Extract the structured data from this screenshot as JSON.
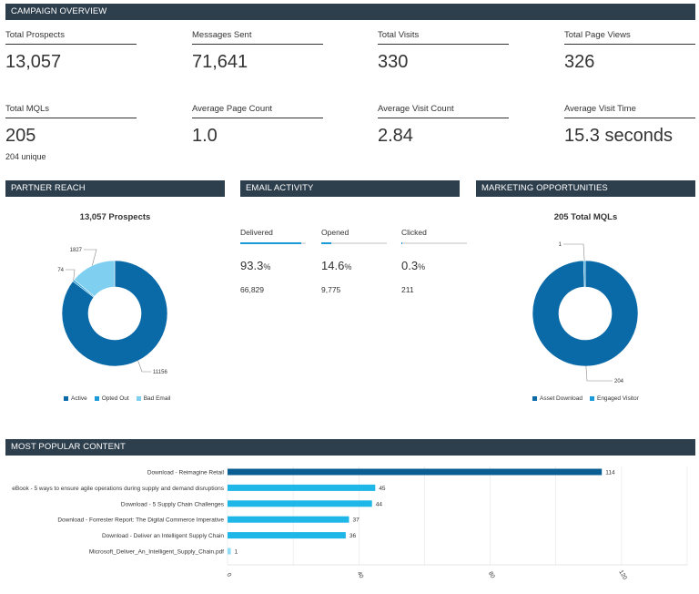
{
  "sections": {
    "overview": "CAMPAIGN OVERVIEW",
    "partner": "PARTNER REACH",
    "email": "EMAIL ACTIVITY",
    "marketing": "MARKETING OPPORTUNITIES",
    "content": "MOST POPULAR CONTENT"
  },
  "kpis": [
    {
      "label": "Total Prospects",
      "value": "13,057"
    },
    {
      "label": "Messages Sent",
      "value": "71,641"
    },
    {
      "label": "Total Visits",
      "value": "330"
    },
    {
      "label": "Total Page Views",
      "value": "326"
    },
    {
      "label": "Total MQLs",
      "value": "205",
      "sub": "204 unique"
    },
    {
      "label": "Average Page Count",
      "value": "1.0"
    },
    {
      "label": "Average Visit Count",
      "value": "2.84"
    },
    {
      "label": "Average Visit Time",
      "value": "15.3 seconds"
    }
  ],
  "email_activity": [
    {
      "label": "Delivered",
      "pct": "93.3",
      "unit": "%",
      "count": "66,829",
      "fraction": 0.933
    },
    {
      "label": "Opened",
      "pct": "14.6",
      "unit": "%",
      "count": "9,775",
      "fraction": 0.146
    },
    {
      "label": "Clicked",
      "pct": "0.3",
      "unit": "%",
      "count": "211",
      "fraction": 0.003
    }
  ],
  "chart_data": [
    {
      "type": "pie",
      "title": "13,057 Prospects",
      "slices": [
        {
          "name": "Active",
          "value": 11156,
          "label": "11156",
          "color": "#0a6aa8"
        },
        {
          "name": "Opted Out",
          "value": 74,
          "label": "74",
          "color": "#1a9ad6"
        },
        {
          "name": "Bad Email",
          "value": 1827,
          "label": "1827",
          "color": "#7fcff0"
        }
      ],
      "legend": "bottom"
    },
    {
      "type": "pie",
      "title": "205 Total MQLs",
      "slices": [
        {
          "name": "Asset Download",
          "value": 204,
          "label": "204",
          "color": "#0a6aa8"
        },
        {
          "name": "Engaged Visitor",
          "value": 1,
          "label": "1",
          "color": "#1a9ad6"
        }
      ],
      "legend": "bottom"
    },
    {
      "type": "bar",
      "orientation": "horizontal",
      "categories": [
        "Download - Reimagine Retail",
        "eBook - 5 ways to ensure agile operations during supply and demand disruptions",
        "Download - 5 Supply Chain Challenges",
        "Download - Forrester Report: The Digital Commerce Imperative",
        "Download - Deliver an Intelligent Supply Chain",
        "Microsoft_Deliver_An_Intelligent_Supply_Chain.pdf"
      ],
      "values": [
        114,
        45,
        44,
        37,
        36,
        1
      ],
      "value_labels": [
        "114",
        "45",
        "44",
        "37",
        "36",
        "1"
      ],
      "colors": [
        "#0a5e92",
        "#1fb6e8",
        "#1fb6e8",
        "#1fb6e8",
        "#1fb6e8",
        "#8fdcf6"
      ],
      "xticks": [
        "0",
        "40",
        "80",
        "120"
      ],
      "xlim": [
        0,
        140
      ],
      "grid": true
    }
  ]
}
